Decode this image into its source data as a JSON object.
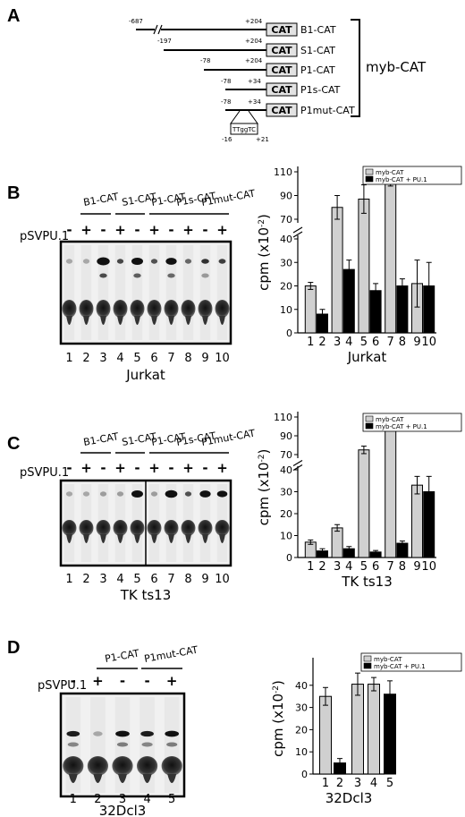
{
  "panels": {
    "a": "A",
    "b": "B",
    "c": "C",
    "d": "D"
  },
  "constructs": {
    "group_label": "myb-CAT",
    "cat": "CAT",
    "items": [
      {
        "name": "B1-CAT",
        "start": "-687",
        "end": "+204"
      },
      {
        "name": "S1-CAT",
        "start": "-197",
        "end": "+204"
      },
      {
        "name": "P1-CAT",
        "start": "-78",
        "end": "+204"
      },
      {
        "name": "P1s-CAT",
        "start": "-78",
        "end": "+34"
      },
      {
        "name": "P1mut-CAT",
        "start": "-78",
        "end": "+34"
      }
    ],
    "mutation": {
      "seq": "TTggTC",
      "left": "-16",
      "right": "+21"
    }
  },
  "gel_common": {
    "construct_labels": [
      "B1-CAT",
      "S1-CAT",
      "P1-CAT",
      "P1s-CAT",
      "P1mut-CAT"
    ],
    "vector_label": "pSVPU.1",
    "signs": [
      "-",
      "+",
      "-",
      "+",
      "-",
      "+",
      "-",
      "+",
      "-",
      "+"
    ],
    "lanes10": [
      "1",
      "2",
      "3",
      "4",
      "5",
      "6",
      "7",
      "8",
      "9",
      "10"
    ]
  },
  "gel_b": {
    "cell_line": "Jurkat"
  },
  "gel_c": {
    "cell_line": "TK ts13"
  },
  "gel_d": {
    "construct_labels": [
      "P1-CAT",
      "P1mut-CAT"
    ],
    "signs": [
      "-",
      "+",
      "-",
      "-",
      "+"
    ],
    "lanes": [
      "1",
      "2",
      "3",
      "4",
      "5"
    ],
    "cell_line": "32Dcl3"
  },
  "legend": {
    "s1": "myb-CAT",
    "s2": "myb-CAT + PU.1"
  },
  "colors": {
    "s1": "#d0d0d0",
    "s2": "#000000"
  },
  "chart_data": [
    {
      "type": "bar",
      "title": "",
      "xlabel": "Jurkat",
      "ylabel": "cpm (x10-2)",
      "categories": [
        "1",
        "2",
        "3",
        "4",
        "5",
        "6",
        "7",
        "8",
        "9",
        "10"
      ],
      "yticks_low": [
        "0",
        "10",
        "20",
        "30",
        "40"
      ],
      "yticks_high": [
        "70",
        "90",
        "110"
      ],
      "series": [
        {
          "name": "myb-CAT",
          "points": [
            {
              "lane": "1",
              "value": 20,
              "err": 1.5
            },
            {
              "lane": "3",
              "value": 80,
              "err": 10
            },
            {
              "lane": "5",
              "value": 87,
              "err": 12
            },
            {
              "lane": "7",
              "value": 102,
              "err": 4
            },
            {
              "lane": "9",
              "value": 21,
              "err": 10
            }
          ]
        },
        {
          "name": "myb-CAT + PU.1",
          "points": [
            {
              "lane": "2",
              "value": 8,
              "err": 2
            },
            {
              "lane": "4",
              "value": 27,
              "err": 4
            },
            {
              "lane": "6",
              "value": 18,
              "err": 3
            },
            {
              "lane": "8",
              "value": 20,
              "err": 3
            },
            {
              "lane": "10",
              "value": 20,
              "err": 10
            }
          ]
        }
      ]
    },
    {
      "type": "bar",
      "title": "",
      "xlabel": "TK ts13",
      "ylabel": "cpm (x10-2)",
      "categories": [
        "1",
        "2",
        "3",
        "4",
        "5",
        "6",
        "7",
        "8",
        "9",
        "10"
      ],
      "yticks_low": [
        "0",
        "10",
        "20",
        "30",
        "40"
      ],
      "yticks_high": [
        "70",
        "90",
        "110"
      ],
      "series": [
        {
          "name": "myb-CAT",
          "points": [
            {
              "lane": "1",
              "value": 7,
              "err": 1
            },
            {
              "lane": "3",
              "value": 13.5,
              "err": 1.5
            },
            {
              "lane": "5",
              "value": 75,
              "err": 4
            },
            {
              "lane": "7",
              "value": 109,
              "err": 3
            },
            {
              "lane": "9",
              "value": 33,
              "err": 4
            }
          ]
        },
        {
          "name": "myb-CAT + PU.1",
          "points": [
            {
              "lane": "2",
              "value": 3,
              "err": 1
            },
            {
              "lane": "4",
              "value": 4,
              "err": 1
            },
            {
              "lane": "6",
              "value": 2.5,
              "err": 0.7
            },
            {
              "lane": "8",
              "value": 6.5,
              "err": 1
            },
            {
              "lane": "10",
              "value": 30,
              "err": 7
            }
          ]
        }
      ]
    },
    {
      "type": "bar",
      "title": "",
      "xlabel": "32Dcl3",
      "ylabel": "cpm (x10-2)",
      "categories": [
        "1",
        "2",
        "3",
        "4",
        "5"
      ],
      "yticks": [
        "0",
        "10",
        "20",
        "30",
        "40"
      ],
      "ylim": [
        0,
        50
      ],
      "series": [
        {
          "name": "myb-CAT",
          "points": [
            {
              "lane": "1",
              "value": 35,
              "err": 4
            },
            {
              "lane": "3",
              "value": 40.5,
              "err": 5
            },
            {
              "lane": "4",
              "value": 40.5,
              "err": 3
            }
          ]
        },
        {
          "name": "myb-CAT + PU.1",
          "points": [
            {
              "lane": "2",
              "value": 5,
              "err": 2
            },
            {
              "lane": "5",
              "value": 36,
              "err": 6
            }
          ]
        }
      ]
    }
  ]
}
